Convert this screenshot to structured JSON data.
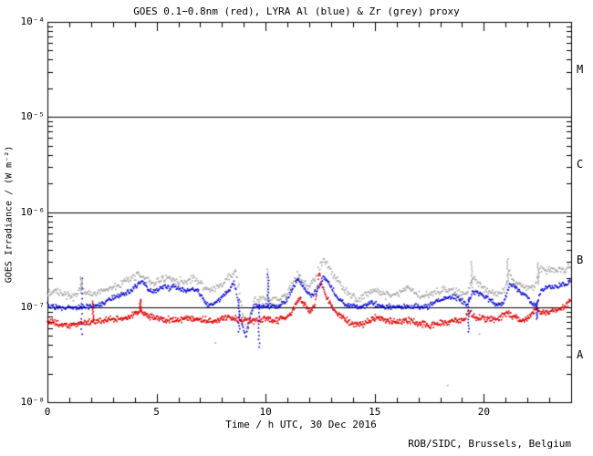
{
  "chart_data": {
    "type": "scatter",
    "title": "GOES 0.1−0.8nm (red), LYRA Al (blue) & Zr (grey) proxy",
    "xlabel": "Time / h UTC, 30 Dec 2016",
    "ylabel": "GOES Irradiance / (W m⁻²)",
    "footer": "ROB/SIDC, Brussels, Belgium",
    "x_range": [
      0,
      24
    ],
    "x_major_ticks": [
      0,
      5,
      10,
      15,
      20
    ],
    "x_tick_labels": [
      "0",
      "5",
      "10",
      "15",
      "20"
    ],
    "x_minor_step": 1,
    "y_scale": "log",
    "y_decades_exp": [
      -4,
      -5,
      -6,
      -7,
      -8
    ],
    "y_tick_labels": [
      "10⁻⁴",
      "10⁻⁵",
      "10⁻⁶",
      "10⁻⁷",
      "10⁻⁸"
    ],
    "flare_class_labels": [
      "M",
      "C",
      "B",
      "A"
    ],
    "hlines": [
      1e-05,
      1e-06,
      1e-07
    ],
    "grid": "off",
    "legend": "in title",
    "series": [
      {
        "name": "GOES 0.1−0.8nm",
        "color": "#dd0000",
        "step_h": 0.024,
        "noise_dex": 0.02,
        "keypoints": [
          [
            0,
            7.2e-08
          ],
          [
            0.5,
            6.6e-08
          ],
          [
            1,
            6.3e-08
          ],
          [
            1.5,
            6.8e-08
          ],
          [
            2,
            7e-08
          ],
          [
            2.5,
            7.2e-08
          ],
          [
            3,
            7.4e-08
          ],
          [
            3.6,
            7.6e-08
          ],
          [
            4.05,
            8.6e-08
          ],
          [
            4.25,
            9.6e-08
          ],
          [
            4.5,
            8.2e-08
          ],
          [
            5,
            7.6e-08
          ],
          [
            5.5,
            7.4e-08
          ],
          [
            6,
            7.3e-08
          ],
          [
            6.7,
            7.8e-08
          ],
          [
            7.1,
            7.4e-08
          ],
          [
            7.5,
            7.2e-08
          ],
          [
            8,
            7.5e-08
          ],
          [
            8.4,
            8e-08
          ],
          [
            8.8,
            7.4e-08
          ],
          [
            9.5,
            7.2e-08
          ],
          [
            10,
            7.4e-08
          ],
          [
            10.5,
            7.2e-08
          ],
          [
            11,
            7.8e-08
          ],
          [
            11.3,
            9.5e-08
          ],
          [
            11.5,
            1.25e-07
          ],
          [
            11.75,
            1.08e-07
          ],
          [
            12,
            9.2e-08
          ],
          [
            12.25,
            1e-07
          ],
          [
            12.45,
            2.3e-07
          ],
          [
            12.6,
            1.6e-07
          ],
          [
            12.9,
            1.15e-07
          ],
          [
            13.3,
            8.6e-08
          ],
          [
            13.7,
            7.2e-08
          ],
          [
            14.1,
            6.5e-08
          ],
          [
            14.5,
            6.6e-08
          ],
          [
            14.85,
            7.4e-08
          ],
          [
            15.05,
            7.7e-08
          ],
          [
            15.4,
            7.2e-08
          ],
          [
            16,
            7e-08
          ],
          [
            16.5,
            7.3e-08
          ],
          [
            17,
            6.8e-08
          ],
          [
            17.5,
            6.4e-08
          ],
          [
            18,
            6.8e-08
          ],
          [
            18.6,
            7e-08
          ],
          [
            19.1,
            7.3e-08
          ],
          [
            19.35,
            9e-08
          ],
          [
            19.6,
            7.8e-08
          ],
          [
            20,
            7.6e-08
          ],
          [
            20.6,
            7.3e-08
          ],
          [
            21.05,
            8.8e-08
          ],
          [
            21.3,
            8e-08
          ],
          [
            21.8,
            7.2e-08
          ],
          [
            22.1,
            7.7e-08
          ],
          [
            22.4,
            9.6e-08
          ],
          [
            22.6,
            8.8e-08
          ],
          [
            23,
            9e-08
          ],
          [
            23.5,
            9.5e-08
          ],
          [
            24,
            1.15e-07
          ]
        ]
      },
      {
        "name": "LYRA Al proxy",
        "color": "#0000cc",
        "step_h": 0.03,
        "noise_dex": 0.016,
        "keypoints": [
          [
            0,
            1.05e-07
          ],
          [
            0.4,
            1e-07
          ],
          [
            1,
            9.7e-08
          ],
          [
            1.6,
            1e-07
          ],
          [
            2.2,
            1.04e-07
          ],
          [
            2.6,
            1.12e-07
          ],
          [
            3,
            1.25e-07
          ],
          [
            3.5,
            1.4e-07
          ],
          [
            3.9,
            1.55e-07
          ],
          [
            4.2,
            1.8e-07
          ],
          [
            4.35,
            1.9e-07
          ],
          [
            4.6,
            1.55e-07
          ],
          [
            4.85,
            1.45e-07
          ],
          [
            5.1,
            1.52e-07
          ],
          [
            5.35,
            1.65e-07
          ],
          [
            5.6,
            1.58e-07
          ],
          [
            5.85,
            1.65e-07
          ],
          [
            6.1,
            1.52e-07
          ],
          [
            6.35,
            1.48e-07
          ],
          [
            6.65,
            1.55e-07
          ],
          [
            6.95,
            1.42e-07
          ],
          [
            7.2,
            1.18e-07
          ],
          [
            7.35,
            1.03e-07
          ],
          [
            7.7,
            1.1e-07
          ],
          [
            8.05,
            1.3e-07
          ],
          [
            8.35,
            1.55e-07
          ],
          [
            8.55,
            1.85e-07
          ],
          [
            8.68,
            1.35e-07
          ],
          [
            8.85,
            7.5e-08
          ],
          [
            9.1,
            4.8e-08
          ],
          [
            9.3,
            8e-08
          ],
          [
            9.45,
            1e-07
          ],
          [
            10,
            1.04e-07
          ],
          [
            10.5,
            1e-07
          ],
          [
            10.9,
            1.12e-07
          ],
          [
            11.2,
            1.5e-07
          ],
          [
            11.45,
            1.95e-07
          ],
          [
            11.7,
            1.68e-07
          ],
          [
            11.95,
            1.42e-07
          ],
          [
            12.15,
            1.3e-07
          ],
          [
            12.4,
            1.55e-07
          ],
          [
            12.62,
            2.05e-07
          ],
          [
            12.85,
            1.85e-07
          ],
          [
            13.1,
            1.5e-07
          ],
          [
            13.4,
            1.2e-07
          ],
          [
            13.7,
            1.04e-07
          ],
          [
            14.5,
            1e-07
          ],
          [
            14.85,
            1.12e-07
          ],
          [
            15.1,
            1.06e-07
          ],
          [
            15.5,
            1e-07
          ],
          [
            16.4,
            1.02e-07
          ],
          [
            17.4,
            1e-07
          ],
          [
            17.8,
            1.15e-07
          ],
          [
            18.2,
            1.22e-07
          ],
          [
            18.65,
            1.3e-07
          ],
          [
            18.9,
            1.18e-07
          ],
          [
            19.25,
            1.08e-07
          ],
          [
            19.5,
            1.45e-07
          ],
          [
            19.8,
            1.38e-07
          ],
          [
            20.1,
            1.28e-07
          ],
          [
            20.5,
            1.08e-07
          ],
          [
            20.85,
            1.06e-07
          ],
          [
            21.05,
            1.35e-07
          ],
          [
            21.2,
            1.8e-07
          ],
          [
            21.5,
            1.58e-07
          ],
          [
            21.9,
            1.35e-07
          ],
          [
            22.2,
            1.1e-07
          ],
          [
            22.4,
            1.02e-07
          ],
          [
            22.65,
            1.5e-07
          ],
          [
            23,
            1.62e-07
          ],
          [
            23.4,
            1.66e-07
          ],
          [
            23.75,
            1.72e-07
          ],
          [
            24,
            1.92e-07
          ]
        ]
      },
      {
        "name": "LYRA Zr proxy",
        "color": "#a3a3a3",
        "step_h": 0.034,
        "noise_dex": 0.024,
        "keypoints": [
          [
            0,
            1.4e-07
          ],
          [
            0.45,
            1.5e-07
          ],
          [
            0.8,
            1.35e-07
          ],
          [
            1.15,
            1.27e-07
          ],
          [
            1.45,
            1.5e-07
          ],
          [
            1.75,
            1.45e-07
          ],
          [
            2.1,
            1.36e-07
          ],
          [
            2.6,
            1.5e-07
          ],
          [
            3,
            1.62e-07
          ],
          [
            3.5,
            1.8e-07
          ],
          [
            3.9,
            2e-07
          ],
          [
            4.2,
            2.2e-07
          ],
          [
            4.45,
            2.05e-07
          ],
          [
            4.75,
            1.78e-07
          ],
          [
            5.1,
            1.88e-07
          ],
          [
            5.45,
            2.05e-07
          ],
          [
            5.75,
            1.95e-07
          ],
          [
            6.05,
            1.9e-07
          ],
          [
            6.4,
            1.86e-07
          ],
          [
            6.7,
            2.05e-07
          ],
          [
            7,
            1.8e-07
          ],
          [
            7.3,
            1.52e-07
          ],
          [
            7.6,
            1.58e-07
          ],
          [
            7.95,
            1.72e-07
          ],
          [
            8.25,
            1.95e-07
          ],
          [
            8.5,
            2.3e-07
          ],
          [
            8.62,
            2.45e-07
          ],
          [
            8.75,
            1.7e-07
          ],
          [
            8.95,
            9e-08
          ],
          [
            9.15,
            5.5e-08
          ],
          [
            9.35,
            9.5e-08
          ],
          [
            9.5,
            1.18e-07
          ],
          [
            10,
            1.22e-07
          ],
          [
            10.5,
            1.16e-07
          ],
          [
            10.9,
            1.32e-07
          ],
          [
            11.2,
            1.7e-07
          ],
          [
            11.45,
            2.2e-07
          ],
          [
            11.7,
            1.92e-07
          ],
          [
            11.95,
            1.62e-07
          ],
          [
            12.2,
            1.85e-07
          ],
          [
            12.65,
            3.2e-07
          ],
          [
            12.9,
            2.6e-07
          ],
          [
            13.2,
            2e-07
          ],
          [
            13.55,
            1.55e-07
          ],
          [
            13.9,
            1.32e-07
          ],
          [
            14.3,
            1.2e-07
          ],
          [
            14.7,
            1.4e-07
          ],
          [
            15,
            1.5e-07
          ],
          [
            15.35,
            1.36e-07
          ],
          [
            15.7,
            1.3e-07
          ],
          [
            16.05,
            1.36e-07
          ],
          [
            16.45,
            1.6e-07
          ],
          [
            16.75,
            1.46e-07
          ],
          [
            17.15,
            1.3e-07
          ],
          [
            17.45,
            1.3e-07
          ],
          [
            17.85,
            1.46e-07
          ],
          [
            18.15,
            1.56e-07
          ],
          [
            18.55,
            1.5e-07
          ],
          [
            18.95,
            1.4e-07
          ],
          [
            19.25,
            1.36e-07
          ],
          [
            19.5,
            2.1e-07
          ],
          [
            19.75,
            1.7e-07
          ],
          [
            20.15,
            1.5e-07
          ],
          [
            20.55,
            1.36e-07
          ],
          [
            20.95,
            1.5e-07
          ],
          [
            21.15,
            2.4e-07
          ],
          [
            21.35,
            1.82e-07
          ],
          [
            21.65,
            1.72e-07
          ],
          [
            22.05,
            1.56e-07
          ],
          [
            22.35,
            1.62e-07
          ],
          [
            22.6,
            2.6e-07
          ],
          [
            22.85,
            2.42e-07
          ],
          [
            23.25,
            2.48e-07
          ],
          [
            23.6,
            2.42e-07
          ],
          [
            24,
            2.62e-07
          ]
        ]
      }
    ],
    "artifact_spikes": [
      {
        "series": 1,
        "t": 1.58,
        "v1": 5.2e-08,
        "v2": 2e-07
      },
      {
        "series": 2,
        "t": 1.55,
        "v1": 1.5e-07,
        "v2": 2.05e-07
      },
      {
        "series": 0,
        "t": 2.1,
        "v1": 7.2e-08,
        "v2": 1.15e-07
      },
      {
        "series": 0,
        "t": 4.25,
        "v1": 9e-08,
        "v2": 1.2e-07
      },
      {
        "series": 1,
        "t": 8.78,
        "v1": 5.5e-08,
        "v2": 1.2e-07
      },
      {
        "series": 1,
        "t": 9.7,
        "v1": 3.8e-08,
        "v2": 1.05e-07
      },
      {
        "series": 2,
        "t": 10.08,
        "v1": 1.2e-07,
        "v2": 2.5e-07
      },
      {
        "series": 1,
        "t": 10.12,
        "v1": 1e-07,
        "v2": 2.2e-07
      },
      {
        "series": 1,
        "t": 19.3,
        "v1": 5.5e-08,
        "v2": 1.25e-07
      },
      {
        "series": 2,
        "t": 19.45,
        "v1": 1.6e-07,
        "v2": 3e-07
      },
      {
        "series": 2,
        "t": 21.1,
        "v1": 1.7e-07,
        "v2": 3.2e-07
      },
      {
        "series": 1,
        "t": 22.45,
        "v1": 7.5e-08,
        "v2": 1.15e-07
      },
      {
        "series": 2,
        "t": 22.5,
        "v1": 1.75e-07,
        "v2": 2.9e-07
      }
    ],
    "stray_points": [
      {
        "series": 2,
        "t": 7.7,
        "v": 4.2e-08
      },
      {
        "series": 2,
        "t": 18.35,
        "v": 1.5e-08
      },
      {
        "series": 2,
        "t": 19.8,
        "v": 5.2e-08
      }
    ]
  }
}
